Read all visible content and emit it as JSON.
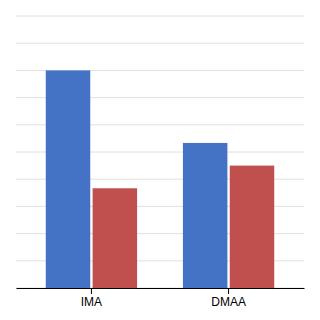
{
  "chart_data": {
    "type": "bar",
    "categories": [
      "IMA",
      "DMAA"
    ],
    "series": [
      {
        "color": "#4472C4",
        "values": [
          24.0,
          16.0
        ]
      },
      {
        "color": "#C0504D",
        "values": [
          11.0,
          13.5
        ]
      }
    ],
    "ylim": [
      0,
      30
    ],
    "yticks": [
      0,
      3,
      6,
      9,
      12,
      15,
      18,
      21,
      24,
      27,
      30
    ],
    "grid": true,
    "tick_labels": "x"
  }
}
